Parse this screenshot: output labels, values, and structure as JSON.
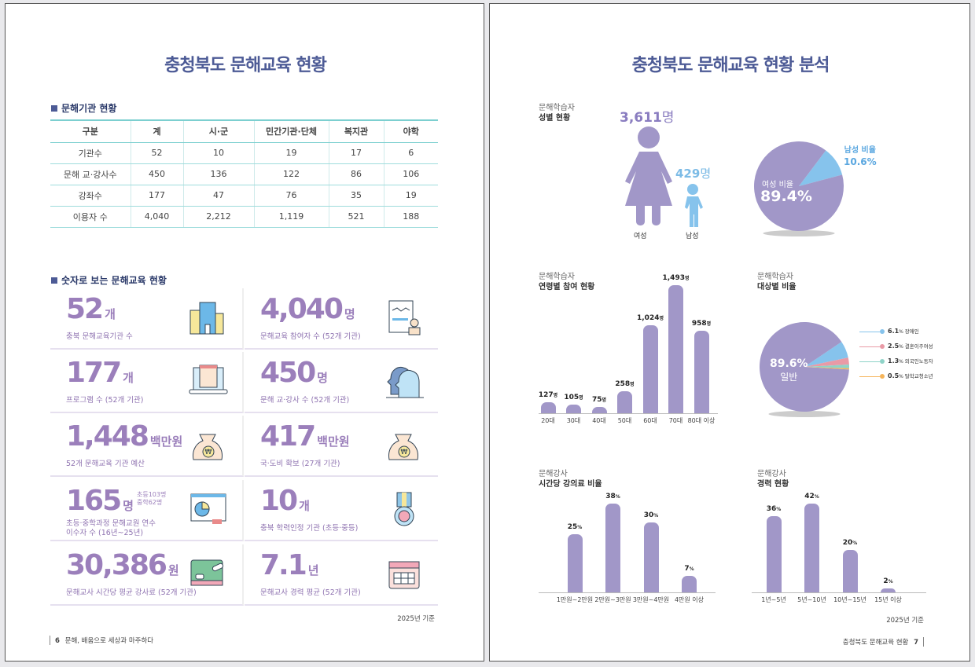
{
  "left": {
    "title": "충청북도 문해교육 현황",
    "section1": "문해기관 현황",
    "table": {
      "headers": [
        "구분",
        "계",
        "시·군",
        "민간기관·단체",
        "복지관",
        "야학"
      ],
      "rows": [
        [
          "기관수",
          "52",
          "10",
          "19",
          "17",
          "6"
        ],
        [
          "문해 교·강사수",
          "450",
          "136",
          "122",
          "86",
          "106"
        ],
        [
          "강좌수",
          "177",
          "47",
          "76",
          "35",
          "19"
        ],
        [
          "이용자 수",
          "4,040",
          "2,212",
          "1,119",
          "521",
          "188"
        ]
      ]
    },
    "section2": "숫자로 보는 문해교육 현황",
    "cards": [
      {
        "value": "52",
        "unit": "개",
        "desc": "충북 문해교육기관 수",
        "icon": "building-icon"
      },
      {
        "value": "4,040",
        "unit": "명",
        "desc": "문해교육 참여자 수 (52개 기관)",
        "icon": "document-person-icon"
      },
      {
        "value": "177",
        "unit": "개",
        "desc": "프로그램 수 (52개 기관)",
        "icon": "laptop-icon"
      },
      {
        "value": "450",
        "unit": "명",
        "desc": "문해 교·강사 수 (52개 기관)",
        "icon": "heads-icon"
      },
      {
        "value": "1,448",
        "unit": "백만원",
        "desc": "52개 문해교육 기관 예산",
        "icon": "money-bag-icon"
      },
      {
        "value": "417",
        "unit": "백만원",
        "desc": "국·도비 확보 (27개 기관)",
        "icon": "money-bag-icon"
      },
      {
        "value": "165",
        "unit": "명",
        "sub1": "초등103명",
        "sub2": "중학62명",
        "desc": "초등·중학과정 문해교원 연수",
        "desc2": "이수자 수 (16년~25년)",
        "icon": "presentation-icon"
      },
      {
        "value": "10",
        "unit": "개",
        "desc": "충북 학력인정 기관 (초등·중등)",
        "icon": "medal-icon"
      },
      {
        "value": "30,386",
        "unit": "원",
        "desc": "문해교사 시간당 평균 강사료 (52개 기관)",
        "icon": "chalkboard-icon"
      },
      {
        "value": "7.1",
        "unit": "년",
        "desc": "문해교사 경력 평균 (52개 기관)",
        "icon": "calendar-icon"
      }
    ],
    "basis": "2025년 기준",
    "page_num": "6",
    "footer": "문해, 배움으로 세상과 마주하다"
  },
  "right": {
    "title": "충청북도 문해교육 현황 분석",
    "gender": {
      "cap1": "문해학습자",
      "cap2": "성별 현황",
      "female_count": "3,611",
      "male_count": "429",
      "unit": "명",
      "female_label": "여성",
      "male_label": "남성",
      "pie_female_label": "여성 비율",
      "pie_female": "89.4%",
      "pie_male_label": "남성 비율",
      "pie_male": "10.6%",
      "female_color": "#a197c8",
      "male_color": "#86c3ec"
    },
    "basis": "2025년 기준",
    "page_num": "7",
    "footer": "충청북도 문해교육 현황"
  },
  "chart_data": [
    {
      "type": "pie",
      "title": "문해학습자 성별 현황",
      "labels": [
        "여성 비율",
        "남성 비율"
      ],
      "values": [
        89.4,
        10.6
      ],
      "colors": [
        "#a197c8",
        "#86c3ec"
      ]
    },
    {
      "type": "bar",
      "caption": "문해학습자",
      "title": "연령별 참여 현황",
      "categories": [
        "20대",
        "30대",
        "40대",
        "50대",
        "60대",
        "70대",
        "80대 이상"
      ],
      "values": [
        127,
        105,
        75,
        258,
        1024,
        1493,
        958
      ],
      "labels": [
        "127",
        "105",
        "75",
        "258",
        "1,024",
        "1,493",
        "958"
      ],
      "unit": "명"
    },
    {
      "type": "pie",
      "caption": "문해학습자",
      "title": "대상별 비율",
      "labels": [
        "일반",
        "장애인",
        "결혼이주여성",
        "외국인노동자",
        "탈학교청소년"
      ],
      "values": [
        89.6,
        6.1,
        2.5,
        1.3,
        0.5
      ],
      "colors": [
        "#a197c8",
        "#86c3ec",
        "#e99aa6",
        "#8fd3c8",
        "#f5b45a"
      ],
      "main_label": "89.6%"
    },
    {
      "type": "bar",
      "caption": "문해강사",
      "title": "시간당 강의료 비율",
      "categories": [
        "1만원~2만원",
        "2만원~3만원",
        "3만원~4만원",
        "4만원 이상"
      ],
      "values": [
        25,
        38,
        30,
        7
      ],
      "unit": "%"
    },
    {
      "type": "bar",
      "caption": "문해강사",
      "title": "경력 현황",
      "categories": [
        "1년~5년",
        "5년~10년",
        "10년~15년",
        "15년 이상"
      ],
      "values": [
        36,
        42,
        20,
        2
      ],
      "unit": "%"
    }
  ]
}
